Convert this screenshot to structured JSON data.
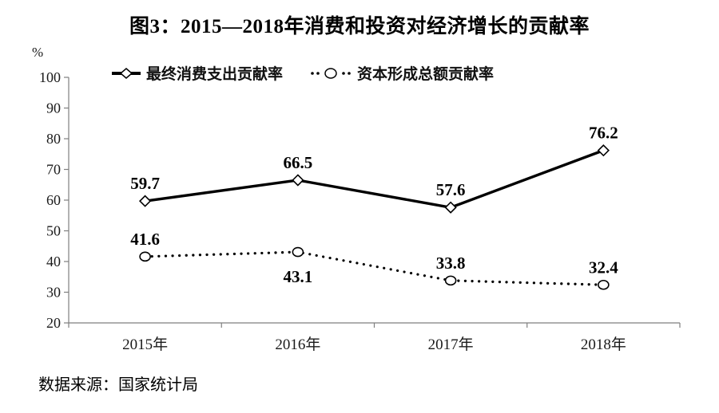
{
  "figure": {
    "source": "数据来源：国家统计局"
  },
  "chart_data": {
    "type": "line",
    "title": "图3：2015—2018年消费和投资对经济增长的贡献率",
    "categories": [
      "2015年",
      "2016年",
      "2017年",
      "2018年"
    ],
    "series": [
      {
        "name": "最终消费支出贡献率",
        "values": [
          59.7,
          66.5,
          57.6,
          76.2
        ],
        "marker": "diamond",
        "line_style": "solid",
        "label_positions": [
          "above",
          "above",
          "above",
          "above"
        ]
      },
      {
        "name": "资本形成总额贡献率",
        "values": [
          41.6,
          43.1,
          33.8,
          32.4
        ],
        "marker": "circle",
        "line_style": "dotted",
        "label_positions": [
          "above",
          "below",
          "above",
          "above"
        ]
      }
    ],
    "xlabel": "",
    "ylabel": "%",
    "ylim": [
      20,
      100
    ],
    "y_ticks": [
      20,
      30,
      40,
      50,
      60,
      70,
      80,
      90,
      100
    ],
    "grid": false,
    "legend_position": "top",
    "colors": {
      "line": "#000000",
      "axis": "#7f7f7f",
      "marker_fill": "#ffffff",
      "text": "#1a1a1a"
    }
  }
}
